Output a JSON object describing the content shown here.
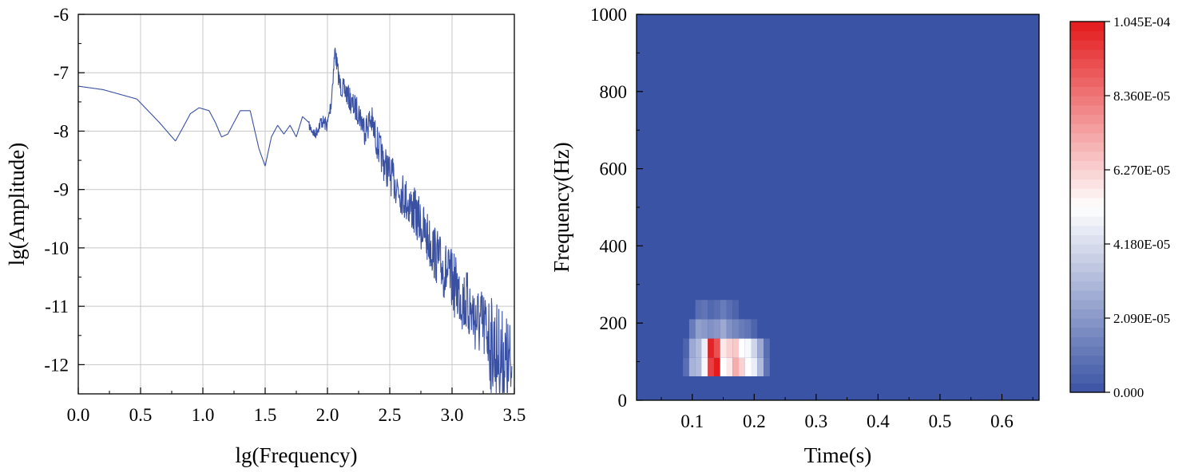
{
  "chart_data": [
    {
      "type": "line",
      "title": "",
      "xlabel": "lg(Frequency)",
      "ylabel": "lg(Amplitude)",
      "xlim": [
        0,
        3.5
      ],
      "ylim": [
        -12.5,
        -6
      ],
      "xticks": [
        "0.0",
        "0.5",
        "1.0",
        "1.5",
        "2.0",
        "2.5",
        "3.0",
        "3.5"
      ],
      "yticks": [
        "-6",
        "-7",
        "-8",
        "-9",
        "-10",
        "-11",
        "-12"
      ],
      "grid": true,
      "color": "#3a50a2",
      "series": [
        {
          "x": [
            0.0,
            0.2,
            0.47,
            0.65,
            0.78,
            0.85,
            0.9,
            0.97,
            1.05,
            1.1,
            1.15,
            1.2,
            1.3,
            1.38,
            1.45,
            1.5,
            1.55,
            1.6,
            1.65,
            1.7,
            1.75,
            1.8,
            1.85,
            1.9,
            1.95,
            2.0,
            2.03,
            2.06,
            2.1,
            2.15,
            2.2,
            2.25,
            2.3,
            2.35,
            2.4,
            2.45,
            2.5,
            2.6,
            2.7,
            2.8,
            2.9,
            3.0,
            3.1,
            3.2,
            3.3,
            3.4,
            3.48
          ],
          "y": [
            -7.23,
            -7.29,
            -7.45,
            -7.85,
            -8.17,
            -7.9,
            -7.7,
            -7.6,
            -7.65,
            -7.85,
            -8.1,
            -8.05,
            -7.65,
            -7.65,
            -8.3,
            -8.6,
            -8.1,
            -7.9,
            -8.05,
            -7.9,
            -8.1,
            -7.75,
            -7.85,
            -8.0,
            -7.75,
            -7.8,
            -7.4,
            -6.5,
            -7.1,
            -7.2,
            -7.4,
            -7.5,
            -7.8,
            -7.6,
            -8.0,
            -8.3,
            -8.5,
            -8.8,
            -9.1,
            -9.5,
            -9.9,
            -10.2,
            -10.5,
            -10.8,
            -11.0,
            -11.3,
            -11.5
          ]
        }
      ]
    },
    {
      "type": "heatmap",
      "title": "",
      "xlabel": "Time(s)",
      "ylabel": "Frequency(Hz)",
      "xlim": [
        0.01,
        0.66
      ],
      "ylim": [
        0,
        1000
      ],
      "xticks": [
        "0.1",
        "0.2",
        "0.3",
        "0.4",
        "0.5",
        "0.6"
      ],
      "yticks": [
        "0",
        "200",
        "400",
        "600",
        "800",
        "1000"
      ],
      "colorbar": {
        "min": 0,
        "max": 0.0001045,
        "ticks": [
          "0.000",
          "2.090E-05",
          "4.180E-05",
          "6.270E-05",
          "8.360E-05",
          "1.045E-04"
        ],
        "colors": [
          "#3a53a4",
          "#ffffff",
          "#e41a1c"
        ]
      },
      "time": [
        0.09,
        0.1,
        0.11,
        0.12,
        0.13,
        0.14,
        0.15,
        0.16,
        0.17,
        0.18,
        0.19,
        0.2,
        0.21,
        0.22
      ],
      "freq_bands": [
        [
          62,
          110
        ],
        [
          110,
          160
        ],
        [
          160,
          210
        ],
        [
          210,
          260
        ]
      ],
      "cells": [
        [
          0.08,
          0.28,
          0.3,
          0.48,
          0.92,
          1.0,
          0.5,
          0.55,
          0.68,
          0.6,
          0.5,
          0.45,
          0.3,
          0.1
        ],
        [
          0.05,
          0.25,
          0.3,
          0.45,
          0.98,
          0.88,
          0.55,
          0.6,
          0.62,
          0.5,
          0.48,
          0.38,
          0.25,
          0.08
        ],
        [
          0.0,
          0.12,
          0.22,
          0.2,
          0.18,
          0.2,
          0.25,
          0.18,
          0.15,
          0.12,
          0.1,
          0.05,
          0.0,
          0.0
        ],
        [
          0.0,
          0.0,
          0.08,
          0.1,
          0.06,
          0.08,
          0.12,
          0.08,
          0.05,
          0.0,
          0.0,
          0.0,
          0.0,
          0.0
        ]
      ]
    }
  ]
}
